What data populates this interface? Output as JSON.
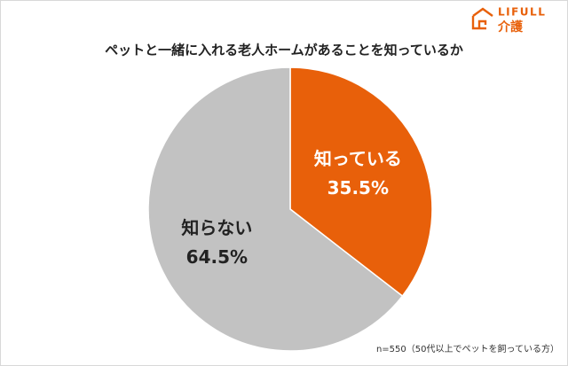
{
  "logo": {
    "brand": "LIFULL",
    "service": "介護"
  },
  "chart_data": {
    "type": "pie",
    "title": "ペットと一緒に入れる老人ホームがあることを知っているか",
    "categories": [
      "知っている",
      "知らない"
    ],
    "values": [
      35.5,
      64.5
    ],
    "value_labels": [
      "35.5%",
      "64.5%"
    ],
    "colors": [
      "#e8600a",
      "#c2c2c2"
    ],
    "note": "n=550（50代以上でペットを飼っている方）"
  }
}
